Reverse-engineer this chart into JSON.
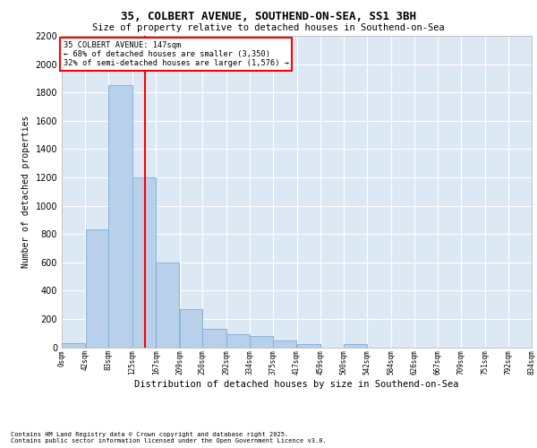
{
  "title1": "35, COLBERT AVENUE, SOUTHEND-ON-SEA, SS1 3BH",
  "title2": "Size of property relative to detached houses in Southend-on-Sea",
  "xlabel": "Distribution of detached houses by size in Southend-on-Sea",
  "ylabel": "Number of detached properties",
  "bin_edges": [
    0,
    42,
    83,
    125,
    167,
    209,
    250,
    292,
    334,
    375,
    417,
    459,
    500,
    542,
    584,
    626,
    667,
    709,
    751,
    792,
    834
  ],
  "bar_heights": [
    30,
    830,
    1850,
    1200,
    600,
    270,
    130,
    90,
    80,
    50,
    20,
    0,
    20,
    0,
    0,
    0,
    0,
    0,
    0,
    0
  ],
  "bar_color": "#b8d0ea",
  "bar_edge_color": "#7aadd4",
  "bg_color": "#dce9f5",
  "grid_color": "#ffffff",
  "red_line_x": 147,
  "ylim": [
    0,
    2200
  ],
  "yticks": [
    0,
    200,
    400,
    600,
    800,
    1000,
    1200,
    1400,
    1600,
    1800,
    2000,
    2200
  ],
  "annotation_title": "35 COLBERT AVENUE: 147sqm",
  "annotation_line1": "← 68% of detached houses are smaller (3,350)",
  "annotation_line2": "32% of semi-detached houses are larger (1,576) →",
  "footer1": "Contains HM Land Registry data © Crown copyright and database right 2025.",
  "footer2": "Contains public sector information licensed under the Open Government Licence v3.0.",
  "tick_labels": [
    "0sqm",
    "42sqm",
    "83sqm",
    "125sqm",
    "167sqm",
    "209sqm",
    "250sqm",
    "292sqm",
    "334sqm",
    "375sqm",
    "417sqm",
    "459sqm",
    "500sqm",
    "542sqm",
    "584sqm",
    "626sqm",
    "667sqm",
    "709sqm",
    "751sqm",
    "792sqm",
    "834sqm"
  ]
}
